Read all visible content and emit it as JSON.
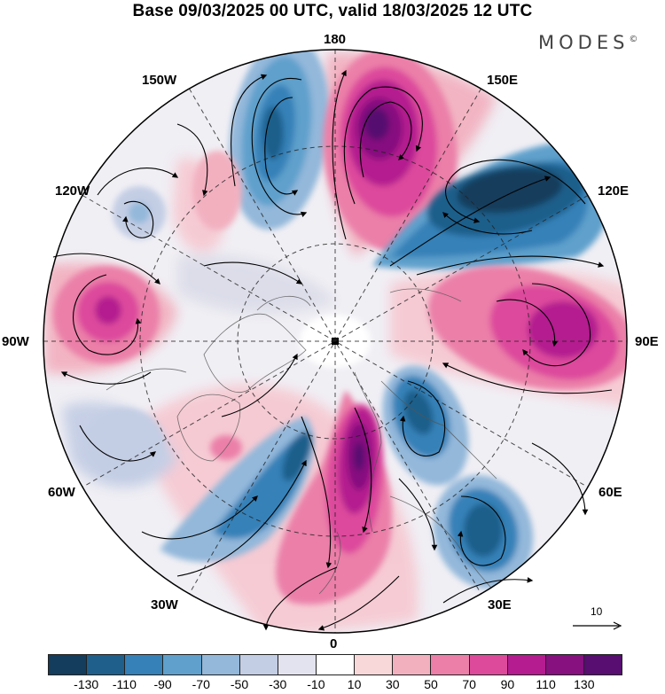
{
  "title": "Base 09/03/2025 00 UTC, valid 18/03/2025 12 UTC",
  "brand": "MODES",
  "brand_mark": "©",
  "longitude_labels": {
    "top": "180",
    "bottom": "0",
    "left": "90W",
    "right": "90E",
    "upper_left_1": "150W",
    "upper_left_2": "120W",
    "upper_right_1": "150E",
    "upper_right_2": "120E",
    "lower_left_1": "60W",
    "lower_left_2": "30W",
    "lower_right_1": "60E",
    "lower_right_2": "30E"
  },
  "reference_vector": "10",
  "colorbar": {
    "colors": [
      "#143c5c",
      "#1f5f8b",
      "#3581b8",
      "#5fa0cc",
      "#93b8da",
      "#c3cde4",
      "#e3e3ef",
      "#ffffff",
      "#f8d8d8",
      "#f2b0bf",
      "#eb7fa8",
      "#dd4a9c",
      "#b41c8f",
      "#86117f",
      "#570e70"
    ],
    "tick_labels": [
      "-130",
      "-110",
      "-90",
      "-70",
      "-50",
      "-30",
      "-10",
      "10",
      "30",
      "50",
      "70",
      "90",
      "110",
      "130"
    ]
  },
  "map_features": [
    "polar-stereographic-projection",
    "graticule-dashed",
    "coastlines",
    "wind-streamlines",
    "anomaly-shading"
  ]
}
